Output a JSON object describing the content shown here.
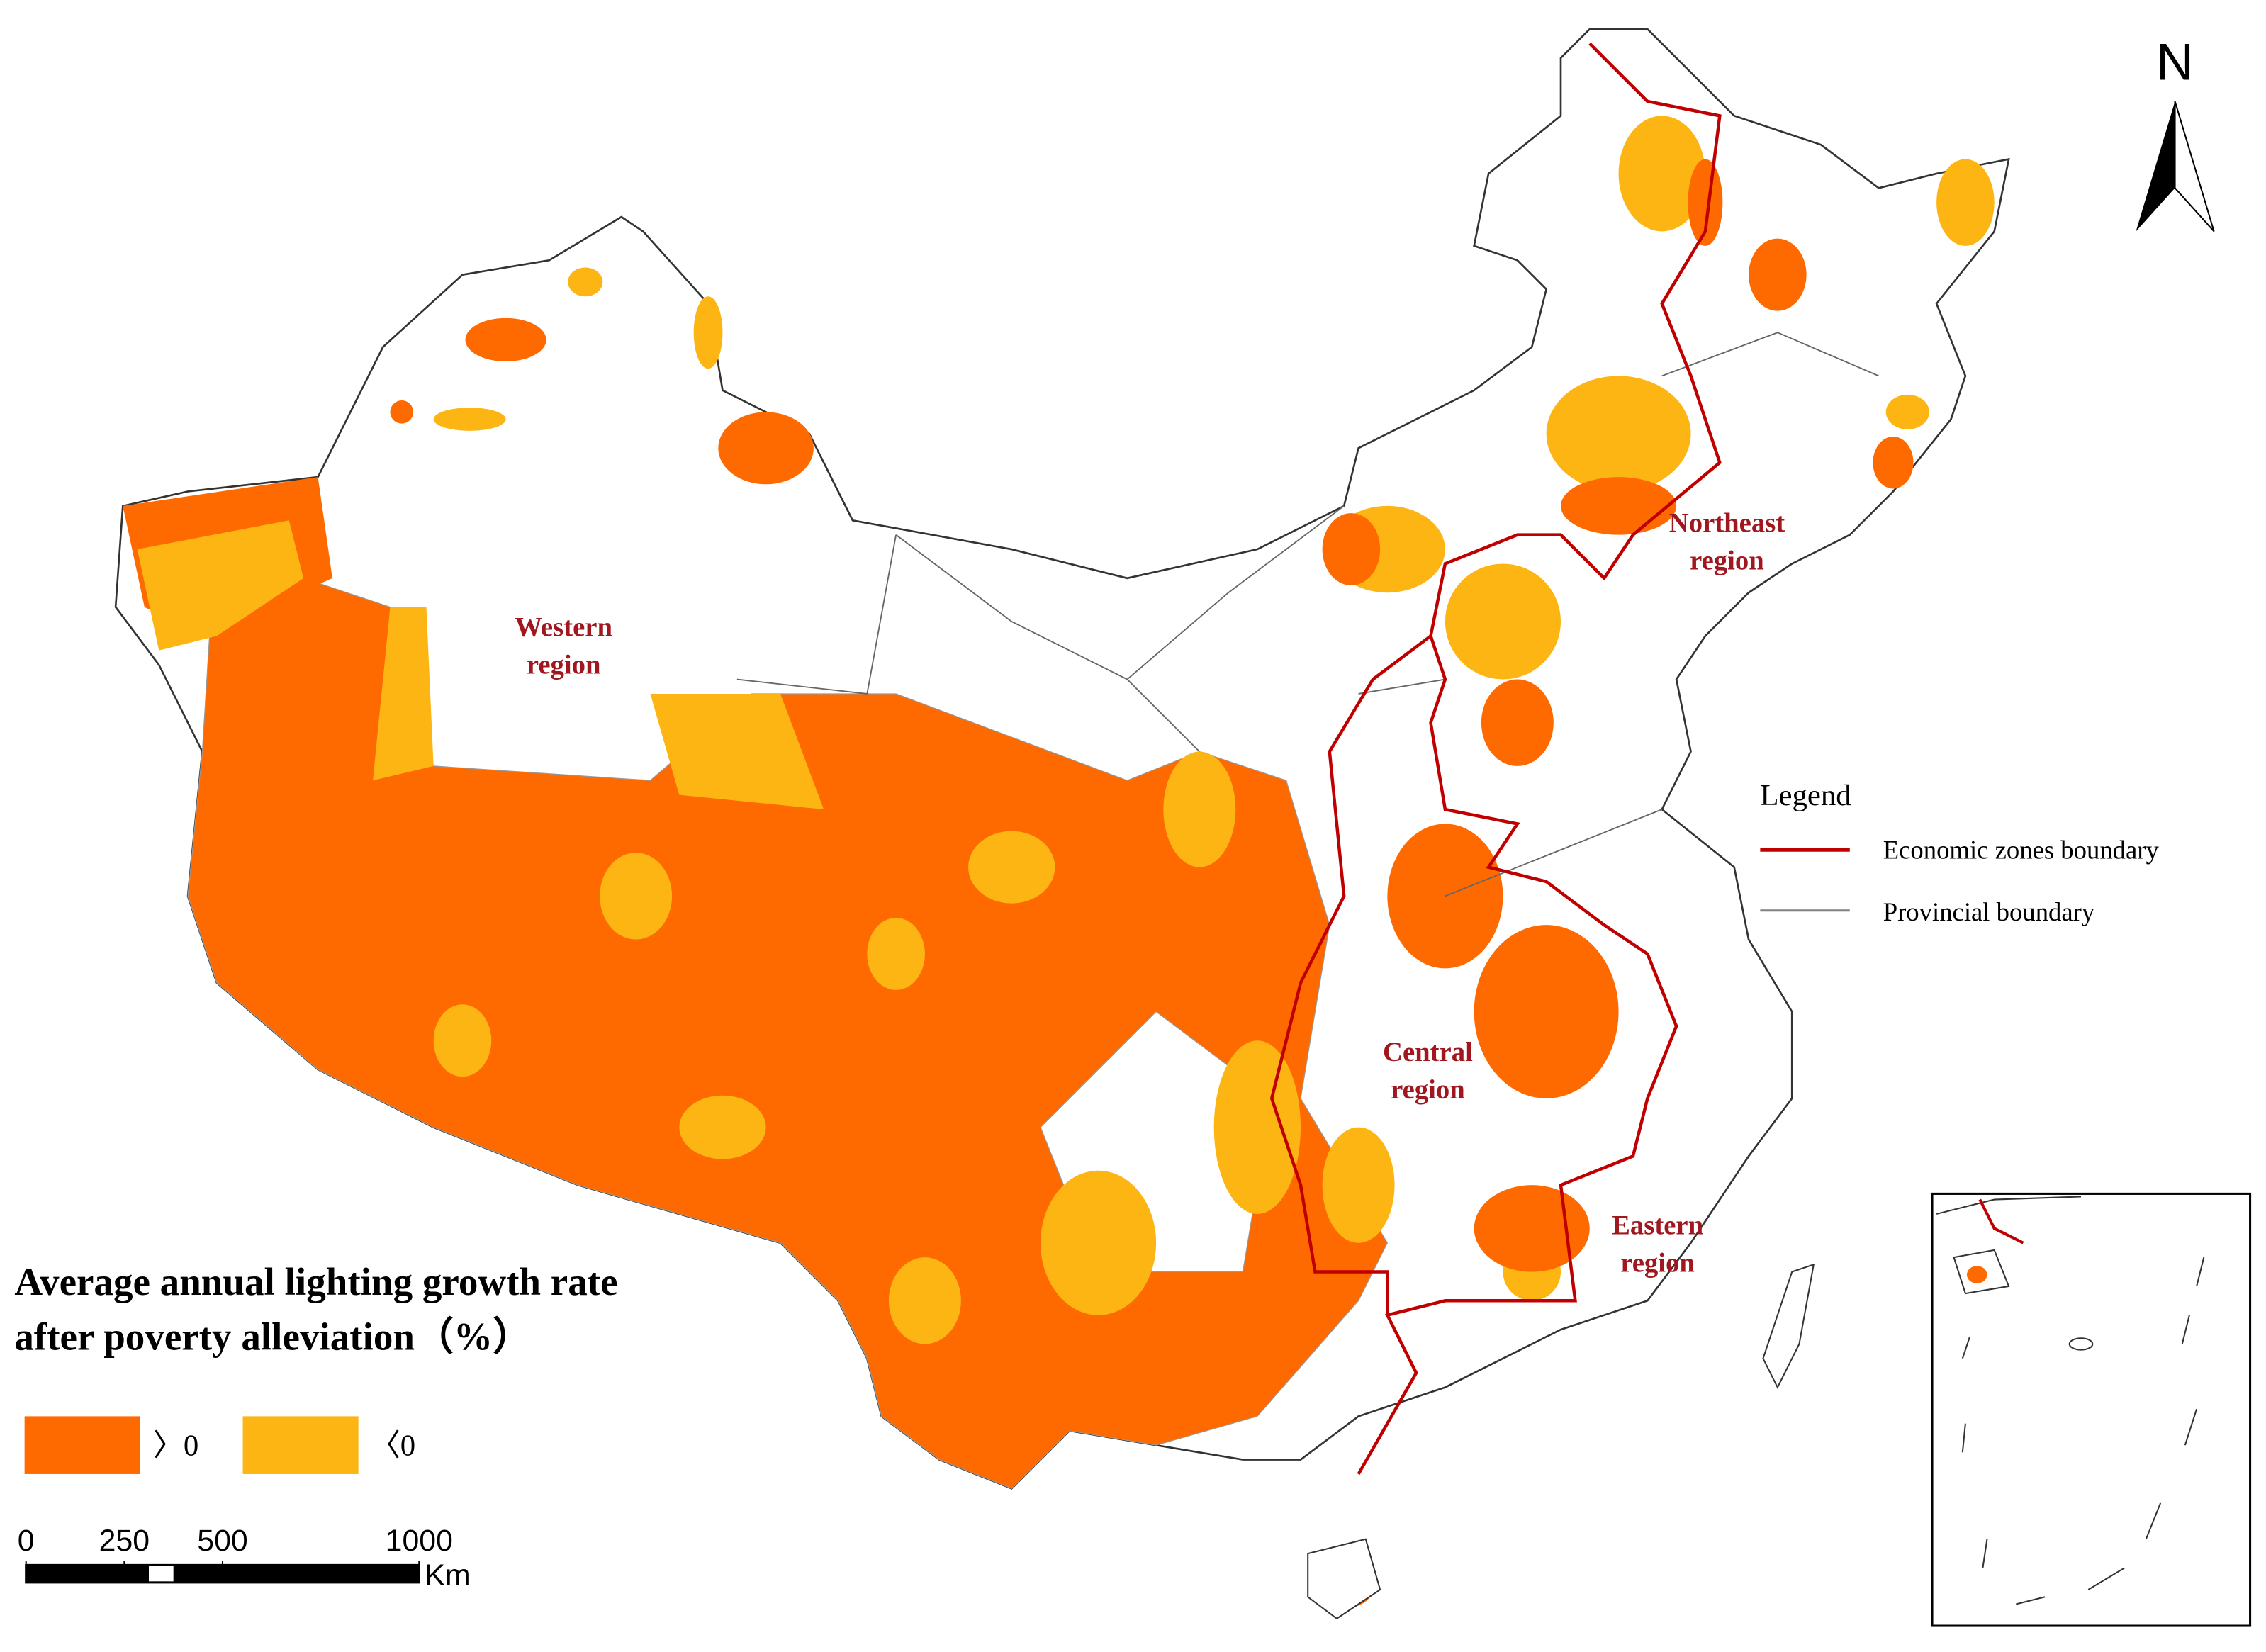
{
  "map": {
    "north": "N",
    "title": {
      "lines": [
        "Average annual lighting growth rate",
        "after poverty alleviation（%）"
      ]
    },
    "regions": [
      {
        "lines": [
          "Western",
          "region"
        ]
      },
      {
        "lines": [
          "Northeast",
          "region"
        ]
      },
      {
        "lines": [
          "Central",
          "region"
        ]
      },
      {
        "lines": [
          "Eastern",
          "region"
        ]
      }
    ],
    "legend": {
      "title": "Legend",
      "items": [
        {
          "label": "Economic zones boundary",
          "color": "#c00000"
        },
        {
          "label": "Provincial boundary",
          "color": "#808080"
        }
      ]
    },
    "classes": [
      {
        "label": "〉0",
        "color": "#ff6a00"
      },
      {
        "label": "〈0",
        "color": "#fdb513"
      }
    ],
    "scale_bar": {
      "ticks": [
        0,
        250,
        500,
        1000
      ],
      "unit": "Km"
    }
  }
}
